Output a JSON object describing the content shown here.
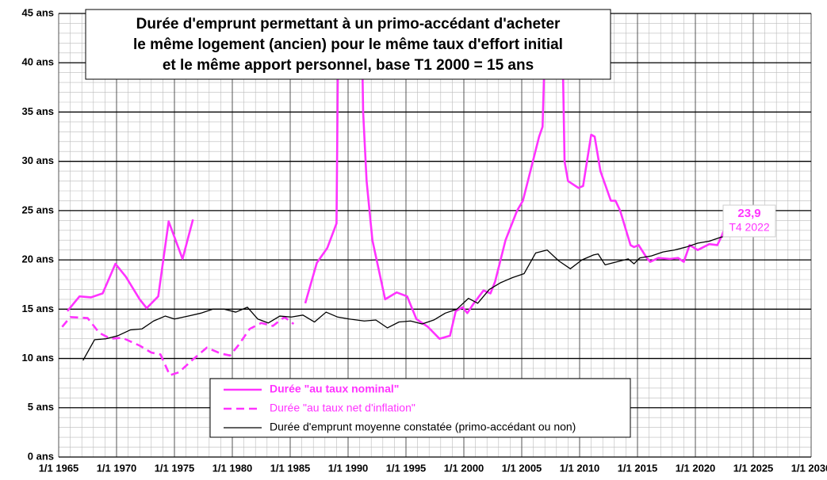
{
  "chart_data": {
    "type": "line",
    "title": [
      "Durée d'emprunt permettant à un primo-accédant d'acheter",
      "le même logement (ancien) pour le même taux d'effort initial",
      "et le même apport personnel, base T1 2000 = 15 ans"
    ],
    "xlim": [
      1965,
      2030
    ],
    "ylim": [
      0,
      45
    ],
    "xticks": [
      {
        "value": 1965,
        "label": "1/1 1965"
      },
      {
        "value": 1970,
        "label": "1/1 1970"
      },
      {
        "value": 1975,
        "label": "1/1 1975"
      },
      {
        "value": 1980,
        "label": "1/1 1980"
      },
      {
        "value": 1985,
        "label": "1/1 1985"
      },
      {
        "value": 1990,
        "label": "1/1 1990"
      },
      {
        "value": 1995,
        "label": "1/1 1995"
      },
      {
        "value": 2000,
        "label": "1/1 2000"
      },
      {
        "value": 2005,
        "label": "1/1 2005"
      },
      {
        "value": 2010,
        "label": "1/1 2010"
      },
      {
        "value": 2015,
        "label": "1/1 2015"
      },
      {
        "value": 2020,
        "label": "1/1 2020"
      },
      {
        "value": 2025,
        "label": "1/1 2025"
      },
      {
        "value": 2030,
        "label": "1/1 2030"
      }
    ],
    "yticks": [
      {
        "value": 0,
        "label": "0 ans"
      },
      {
        "value": 5,
        "label": "5 ans"
      },
      {
        "value": 10,
        "label": "10 ans"
      },
      {
        "value": 15,
        "label": "15 ans"
      },
      {
        "value": 20,
        "label": "20 ans"
      },
      {
        "value": 25,
        "label": "25 ans"
      },
      {
        "value": 30,
        "label": "30 ans"
      },
      {
        "value": 35,
        "label": "35 ans"
      },
      {
        "value": 40,
        "label": "40 ans"
      },
      {
        "value": 45,
        "label": "45 ans"
      }
    ],
    "grid": true,
    "minor_grid": true,
    "series": [
      {
        "name": "Durée \"au taux nominal\"",
        "color": "#ff33ff",
        "dash": false,
        "x": [
          1965.75,
          1966.8,
          1967.8,
          1968.8,
          1969.9,
          1970.8,
          1972,
          1972.6,
          1973.6,
          1974.5,
          1975.7,
          1976.6,
          1981,
          1986.3,
          1987.3,
          1988.2,
          1989,
          1989.2,
          1991.1,
          1991.3,
          1991.6,
          1992.1,
          1993.2,
          1994.2,
          1995.1,
          1995.9,
          1996.9,
          1997.9,
          1998.8,
          1999.3,
          1999.9,
          2000.3,
          2000.8,
          2001.7,
          2002.3,
          2002.7,
          2003.6,
          2004.6,
          2005.1,
          2006.5,
          2006.8,
          2007.2,
          2008.4,
          2008.7,
          2009,
          2009.9,
          2010.3,
          2011,
          2011.3,
          2011.8,
          2012.7,
          2013.1,
          2013.5,
          2014.4,
          2014.7,
          2015.1,
          2015.8,
          2016.1,
          2016.8,
          2017.8,
          2018.5,
          2019,
          2019.5,
          2020.2,
          2021.2,
          2021.9,
          2022.3,
          2022.75
        ],
        "values": [
          14.8,
          16.3,
          16.2,
          16.6,
          19.6,
          18.3,
          16.0,
          15.1,
          16.3,
          23.9,
          20.1,
          24.1,
          null,
          15.6,
          19.7,
          21.2,
          23.7,
          50,
          50,
          35,
          28,
          22,
          16,
          16.7,
          16.3,
          14,
          13.2,
          12,
          12.3,
          14.8,
          15.2,
          14.6,
          15.5,
          16.9,
          16.6,
          17.8,
          22,
          25,
          26,
          32.5,
          33.5,
          50,
          50,
          30,
          28,
          27.3,
          27.5,
          32.7,
          32.5,
          29,
          26,
          26,
          25,
          21.5,
          21.3,
          21.5,
          20.2,
          19.8,
          20.2,
          20.1,
          20.2,
          19.8,
          21.5,
          21.0,
          21.6,
          21.5,
          22.5,
          23.9
        ]
      },
      {
        "name": "Durée \"au taux net d'inflation\"",
        "color": "#ff33ff",
        "dash": true,
        "x": [
          1965.3,
          1966,
          1967.5,
          1968.5,
          1969.5,
          1970.5,
          1972,
          1973,
          1973.8,
          1974.6,
          1975.4,
          1976.5,
          1977.8,
          1979,
          1979.8,
          1980.5,
          1981.5,
          1982.5,
          1983.5,
          1984.5,
          1985.3
        ],
        "values": [
          13.2,
          14.2,
          14.1,
          12.6,
          12.0,
          12.1,
          11.3,
          10.6,
          10.4,
          8.3,
          8.6,
          9.8,
          11.1,
          10.5,
          10.3,
          11.3,
          13.0,
          13.6,
          13.3,
          14.2,
          13.5
        ]
      },
      {
        "name": "Durée d'emprunt moyenne constatée (primo-accédant ou non)",
        "color": "#000000",
        "dash": false,
        "x": [
          1967.1,
          1968.1,
          1969.1,
          1970.1,
          1971.2,
          1972.2,
          1973.2,
          1974.2,
          1975,
          1976.2,
          1977.3,
          1978.3,
          1979.3,
          1980.3,
          1981.3,
          1982.2,
          1983.1,
          1984.1,
          1985.1,
          1986.1,
          1987.1,
          1988.1,
          1989.1,
          1990.1,
          1991.4,
          1992.4,
          1993.4,
          1994.4,
          1995.4,
          1996.4,
          1997.4,
          1998.4,
          1999.4,
          2000.4,
          2001.2,
          2002.2,
          2003.2,
          2004.2,
          2005.2,
          2006.2,
          2007.2,
          2008.2,
          2009.2,
          2010.2,
          2011.2,
          2011.6,
          2012.2,
          2013.2,
          2014.2,
          2014.7,
          2015.2,
          2016.2,
          2017.2,
          2018.2,
          2019.2,
          2020.2,
          2021.2,
          2022.2,
          2023
        ],
        "values": [
          9.8,
          11.9,
          12.0,
          12.3,
          12.9,
          13.0,
          13.8,
          14.3,
          14.0,
          14.3,
          14.6,
          15.0,
          15.0,
          14.7,
          15.2,
          14.0,
          13.6,
          14.3,
          14.2,
          14.4,
          13.7,
          14.7,
          14.2,
          14.0,
          13.8,
          13.9,
          13.1,
          13.7,
          13.8,
          13.5,
          13.9,
          14.6,
          15.0,
          16.1,
          15.6,
          17.0,
          17.7,
          18.2,
          18.6,
          20.7,
          21.0,
          19.9,
          19.1,
          20.0,
          20.5,
          20.6,
          19.5,
          19.8,
          20.1,
          19.6,
          20.2,
          20.4,
          20.8,
          21.0,
          21.3,
          21.7,
          21.9,
          22.3,
          22.5
        ]
      }
    ],
    "annotation": {
      "value": 23.9,
      "value_label": "23,9",
      "text": "T4 2022",
      "color": "#ff33ff"
    }
  }
}
